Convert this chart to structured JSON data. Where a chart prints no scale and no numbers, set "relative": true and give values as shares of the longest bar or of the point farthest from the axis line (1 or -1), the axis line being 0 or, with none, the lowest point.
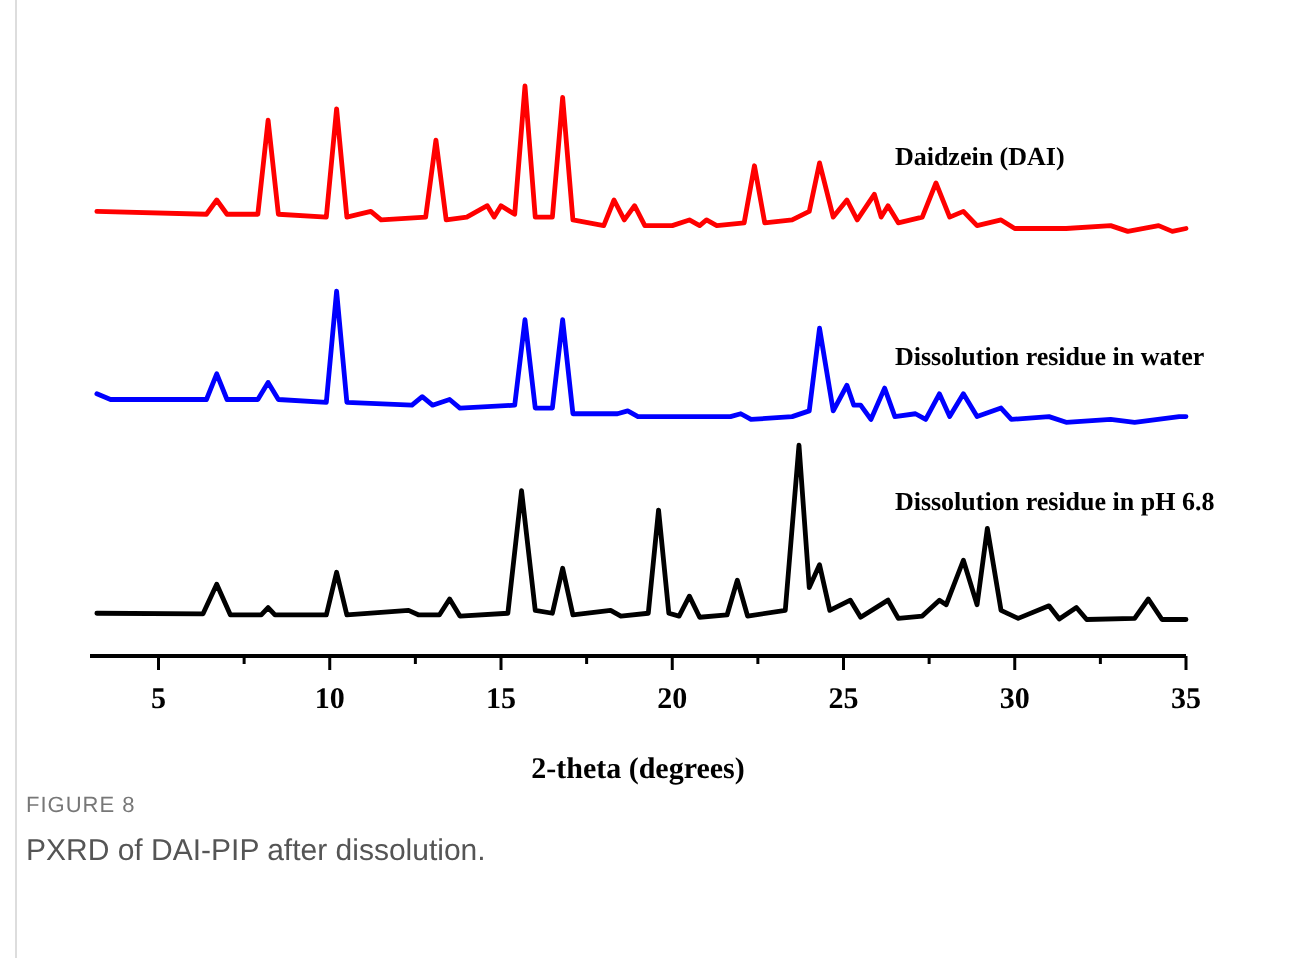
{
  "chart_data": {
    "type": "line",
    "relative": true,
    "xlabel": "2-theta (degrees)",
    "xlim": [
      3,
      35
    ],
    "xticks": [
      5,
      {
        "value": 7.5,
        "label": null
      },
      10,
      {
        "value": 12.5,
        "label": null
      },
      15,
      {
        "value": 17.5,
        "label": null
      },
      20,
      {
        "value": 22.5,
        "label": null
      },
      25,
      {
        "value": 27.5,
        "label": null
      },
      30,
      {
        "value": 32.5,
        "label": null
      },
      35
    ],
    "annotations": [
      "FIGURE 8",
      "PXRD of DAI-PIP after dissolution."
    ],
    "series": [
      {
        "name": "Daidzein (DAI)",
        "color": "#ff0000",
        "x": [
          3.2,
          6.4,
          6.7,
          7.0,
          7.9,
          8.2,
          8.5,
          9.9,
          10.2,
          10.5,
          11.2,
          11.5,
          12.8,
          13.1,
          13.4,
          14.0,
          14.6,
          14.8,
          15.0,
          15.4,
          15.7,
          16.0,
          16.5,
          16.8,
          17.1,
          18.0,
          18.3,
          18.6,
          18.9,
          19.2,
          20.0,
          20.5,
          20.8,
          21.0,
          21.3,
          22.1,
          22.4,
          22.7,
          23.5,
          24.0,
          24.3,
          24.7,
          25.1,
          25.4,
          25.9,
          26.1,
          26.3,
          26.6,
          27.3,
          27.7,
          28.1,
          28.5,
          28.9,
          29.6,
          30.0,
          31.5,
          32.8,
          33.3,
          34.2,
          34.6,
          35.0
        ],
        "values": [
          0.78,
          0.775,
          0.8,
          0.775,
          0.775,
          0.94,
          0.775,
          0.77,
          0.96,
          0.77,
          0.78,
          0.765,
          0.77,
          0.905,
          0.765,
          0.77,
          0.79,
          0.77,
          0.79,
          0.775,
          1.0,
          0.77,
          0.77,
          0.98,
          0.765,
          0.755,
          0.8,
          0.765,
          0.79,
          0.755,
          0.755,
          0.765,
          0.755,
          0.765,
          0.755,
          0.76,
          0.86,
          0.76,
          0.765,
          0.78,
          0.865,
          0.77,
          0.8,
          0.765,
          0.81,
          0.77,
          0.79,
          0.76,
          0.77,
          0.83,
          0.77,
          0.78,
          0.755,
          0.765,
          0.75,
          0.75,
          0.755,
          0.745,
          0.755,
          0.745,
          0.75
        ]
      },
      {
        "name": "Dissolution residue in water",
        "color": "#0000ff",
        "x": [
          3.2,
          3.6,
          6.4,
          6.7,
          7.0,
          7.9,
          8.2,
          8.5,
          9.9,
          10.2,
          10.5,
          12.4,
          12.7,
          13.0,
          13.5,
          13.8,
          15.4,
          15.7,
          16.0,
          16.5,
          16.8,
          17.1,
          18.4,
          18.7,
          19.0,
          21.7,
          22.0,
          22.3,
          23.5,
          24.0,
          24.3,
          24.7,
          25.1,
          25.3,
          25.5,
          25.8,
          26.2,
          26.5,
          27.1,
          27.4,
          27.8,
          28.1,
          28.5,
          28.9,
          29.6,
          29.9,
          31.0,
          31.5,
          32.8,
          33.5,
          34.8,
          35.0
        ],
        "values": [
          0.46,
          0.45,
          0.45,
          0.495,
          0.45,
          0.45,
          0.48,
          0.45,
          0.445,
          0.64,
          0.445,
          0.44,
          0.455,
          0.44,
          0.45,
          0.435,
          0.44,
          0.59,
          0.435,
          0.435,
          0.59,
          0.425,
          0.425,
          0.43,
          0.42,
          0.42,
          0.425,
          0.415,
          0.42,
          0.43,
          0.575,
          0.43,
          0.475,
          0.44,
          0.44,
          0.415,
          0.47,
          0.42,
          0.425,
          0.415,
          0.46,
          0.42,
          0.46,
          0.42,
          0.435,
          0.415,
          0.42,
          0.41,
          0.415,
          0.41,
          0.42,
          0.42
        ]
      },
      {
        "name": "Dissolution residue in pH 6.8",
        "color": "#000000",
        "x": [
          3.2,
          6.3,
          6.7,
          7.1,
          8.0,
          8.2,
          8.4,
          9.9,
          10.2,
          10.5,
          12.3,
          12.6,
          13.2,
          13.5,
          13.8,
          15.2,
          15.6,
          16.0,
          16.5,
          16.8,
          17.1,
          18.2,
          18.5,
          19.3,
          19.6,
          19.9,
          20.2,
          20.5,
          20.8,
          21.6,
          21.9,
          22.2,
          23.3,
          23.7,
          24.0,
          24.3,
          24.6,
          25.2,
          25.5,
          26.3,
          26.6,
          27.3,
          27.8,
          28.0,
          28.5,
          28.9,
          29.2,
          29.6,
          30.1,
          31.0,
          31.3,
          31.8,
          32.1,
          33.5,
          33.9,
          34.3,
          35.0
        ],
        "values": [
          0.075,
          0.074,
          0.126,
          0.072,
          0.072,
          0.085,
          0.072,
          0.072,
          0.147,
          0.072,
          0.08,
          0.072,
          0.072,
          0.1,
          0.07,
          0.075,
          0.29,
          0.08,
          0.075,
          0.154,
          0.072,
          0.08,
          0.07,
          0.075,
          0.256,
          0.075,
          0.07,
          0.105,
          0.068,
          0.072,
          0.133,
          0.07,
          0.08,
          0.37,
          0.12,
          0.16,
          0.08,
          0.098,
          0.068,
          0.098,
          0.066,
          0.07,
          0.098,
          0.09,
          0.168,
          0.09,
          0.224,
          0.08,
          0.066,
          0.088,
          0.065,
          0.085,
          0.064,
          0.066,
          0.1,
          0.064,
          0.064
        ]
      }
    ]
  }
}
